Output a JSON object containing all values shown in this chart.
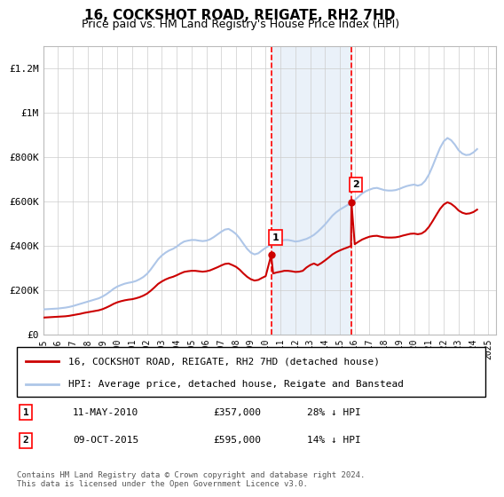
{
  "title": "16, COCKSHOT ROAD, REIGATE, RH2 7HD",
  "subtitle": "Price paid vs. HM Land Registry's House Price Index (HPI)",
  "legend_line1": "16, COCKSHOT ROAD, REIGATE, RH2 7HD (detached house)",
  "legend_line2": "HPI: Average price, detached house, Reigate and Banstead",
  "annotation1_label": "1",
  "annotation1_date": "11-MAY-2010",
  "annotation1_price": "£357,000",
  "annotation1_hpi": "28% ↓ HPI",
  "annotation1_year": 2010.37,
  "annotation1_value": 357000,
  "annotation2_label": "2",
  "annotation2_date": "09-OCT-2015",
  "annotation2_price": "£595,000",
  "annotation2_hpi": "14% ↓ HPI",
  "annotation2_year": 2015.78,
  "annotation2_value": 595000,
  "hpi_color": "#aec6e8",
  "price_color": "#cc0000",
  "background_color": "#ffffff",
  "grid_color": "#cccccc",
  "shade_color": "#dce9f5",
  "ylim": [
    0,
    1300000
  ],
  "yticks": [
    0,
    200000,
    400000,
    600000,
    800000,
    1000000,
    1200000
  ],
  "ytick_labels": [
    "£0",
    "£200K",
    "£400K",
    "£600K",
    "£800K",
    "£1M",
    "£1.2M"
  ],
  "footnote": "Contains HM Land Registry data © Crown copyright and database right 2024.\nThis data is licensed under the Open Government Licence v3.0.",
  "hpi_data": {
    "years": [
      1995.0,
      1995.25,
      1995.5,
      1995.75,
      1996.0,
      1996.25,
      1996.5,
      1996.75,
      1997.0,
      1997.25,
      1997.5,
      1997.75,
      1998.0,
      1998.25,
      1998.5,
      1998.75,
      1999.0,
      1999.25,
      1999.5,
      1999.75,
      2000.0,
      2000.25,
      2000.5,
      2000.75,
      2001.0,
      2001.25,
      2001.5,
      2001.75,
      2002.0,
      2002.25,
      2002.5,
      2002.75,
      2003.0,
      2003.25,
      2003.5,
      2003.75,
      2004.0,
      2004.25,
      2004.5,
      2004.75,
      2005.0,
      2005.25,
      2005.5,
      2005.75,
      2006.0,
      2006.25,
      2006.5,
      2006.75,
      2007.0,
      2007.25,
      2007.5,
      2007.75,
      2008.0,
      2008.25,
      2008.5,
      2008.75,
      2009.0,
      2009.25,
      2009.5,
      2009.75,
      2010.0,
      2010.25,
      2010.5,
      2010.75,
      2011.0,
      2011.25,
      2011.5,
      2011.75,
      2012.0,
      2012.25,
      2012.5,
      2012.75,
      2013.0,
      2013.25,
      2013.5,
      2013.75,
      2014.0,
      2014.25,
      2014.5,
      2014.75,
      2015.0,
      2015.25,
      2015.5,
      2015.75,
      2016.0,
      2016.25,
      2016.5,
      2016.75,
      2017.0,
      2017.25,
      2017.5,
      2017.75,
      2018.0,
      2018.25,
      2018.5,
      2018.75,
      2019.0,
      2019.25,
      2019.5,
      2019.75,
      2020.0,
      2020.25,
      2020.5,
      2020.75,
      2021.0,
      2021.25,
      2021.5,
      2021.75,
      2022.0,
      2022.25,
      2022.5,
      2022.75,
      2023.0,
      2023.25,
      2023.5,
      2023.75,
      2024.0,
      2024.25
    ],
    "values": [
      112000,
      113000,
      114000,
      115000,
      116000,
      118000,
      120000,
      123000,
      127000,
      132000,
      137000,
      142000,
      147000,
      152000,
      157000,
      162000,
      170000,
      180000,
      192000,
      205000,
      215000,
      222000,
      228000,
      232000,
      235000,
      240000,
      248000,
      258000,
      272000,
      292000,
      315000,
      338000,
      355000,
      368000,
      378000,
      385000,
      395000,
      408000,
      418000,
      422000,
      425000,
      425000,
      422000,
      420000,
      422000,
      428000,
      438000,
      450000,
      462000,
      472000,
      475000,
      465000,
      452000,
      432000,
      408000,
      385000,
      368000,
      360000,
      365000,
      378000,
      390000,
      400000,
      408000,
      415000,
      420000,
      425000,
      425000,
      422000,
      418000,
      420000,
      425000,
      430000,
      438000,
      448000,
      462000,
      478000,
      495000,
      515000,
      535000,
      550000,
      562000,
      572000,
      582000,
      592000,
      605000,
      620000,
      635000,
      645000,
      652000,
      658000,
      660000,
      655000,
      650000,
      648000,
      648000,
      650000,
      655000,
      662000,
      668000,
      672000,
      675000,
      670000,
      675000,
      692000,
      720000,
      758000,
      800000,
      840000,
      870000,
      885000,
      875000,
      855000,
      830000,
      815000,
      808000,
      810000,
      820000,
      835000
    ]
  },
  "price_data": {
    "years": [
      1995.0,
      1995.25,
      1995.5,
      1995.75,
      1996.0,
      1996.25,
      1996.5,
      1996.75,
      1997.0,
      1997.25,
      1997.5,
      1997.75,
      1998.0,
      1998.25,
      1998.5,
      1998.75,
      1999.0,
      1999.25,
      1999.5,
      1999.75,
      2000.0,
      2000.25,
      2000.5,
      2000.75,
      2001.0,
      2001.25,
      2001.5,
      2001.75,
      2002.0,
      2002.25,
      2002.5,
      2002.75,
      2003.0,
      2003.25,
      2003.5,
      2003.75,
      2004.0,
      2004.25,
      2004.5,
      2004.75,
      2005.0,
      2005.25,
      2005.5,
      2005.75,
      2006.0,
      2006.25,
      2006.5,
      2006.75,
      2007.0,
      2007.25,
      2007.5,
      2007.75,
      2008.0,
      2008.25,
      2008.5,
      2008.75,
      2009.0,
      2009.25,
      2009.5,
      2009.75,
      2010.0,
      2010.37,
      2010.5,
      2010.75,
      2011.0,
      2011.25,
      2011.5,
      2011.75,
      2012.0,
      2012.25,
      2012.5,
      2012.75,
      2013.0,
      2013.25,
      2013.5,
      2013.75,
      2014.0,
      2014.25,
      2014.5,
      2014.75,
      2015.0,
      2015.25,
      2015.5,
      2015.75,
      2015.78,
      2016.0,
      2016.25,
      2016.5,
      2016.75,
      2017.0,
      2017.25,
      2017.5,
      2017.75,
      2018.0,
      2018.25,
      2018.5,
      2018.75,
      2019.0,
      2019.25,
      2019.5,
      2019.75,
      2020.0,
      2020.25,
      2020.5,
      2020.75,
      2021.0,
      2021.25,
      2021.5,
      2021.75,
      2022.0,
      2022.25,
      2022.5,
      2022.75,
      2023.0,
      2023.25,
      2023.5,
      2023.75,
      2024.0,
      2024.25
    ],
    "values": [
      75000,
      76000,
      77000,
      78000,
      79000,
      80000,
      81000,
      83000,
      86000,
      89000,
      92000,
      96000,
      99000,
      102000,
      105000,
      108000,
      113000,
      120000,
      128000,
      137000,
      144000,
      149000,
      153000,
      156000,
      158000,
      162000,
      167000,
      174000,
      183000,
      196000,
      211000,
      227000,
      238000,
      247000,
      254000,
      259000,
      266000,
      274000,
      281000,
      284000,
      286000,
      286000,
      284000,
      282000,
      284000,
      288000,
      295000,
      302000,
      310000,
      317000,
      319000,
      312000,
      304000,
      291000,
      274000,
      259000,
      248000,
      242000,
      245000,
      254000,
      262000,
      357000,
      274000,
      279000,
      282000,
      286000,
      286000,
      284000,
      281000,
      282000,
      286000,
      301000,
      312000,
      319000,
      311000,
      321000,
      333000,
      346000,
      360000,
      370000,
      378000,
      385000,
      391000,
      398000,
      595000,
      406000,
      417000,
      427000,
      434000,
      440000,
      443000,
      444000,
      440000,
      437000,
      436000,
      436000,
      437000,
      440000,
      445000,
      449000,
      453000,
      454000,
      451000,
      454000,
      465000,
      484000,
      510000,
      538000,
      565000,
      585000,
      595000,
      588000,
      575000,
      558000,
      548000,
      543000,
      545000,
      551000,
      562000
    ]
  }
}
